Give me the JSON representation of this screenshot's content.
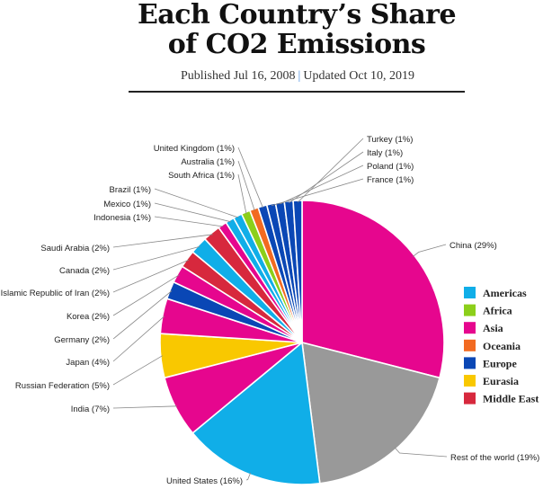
{
  "header": {
    "title_line1": "Each Country’s Share",
    "title_line2": "of CO2 Emissions",
    "published": "Published Jul 16, 2008",
    "separator": "|",
    "updated": "Updated Oct 10, 2019"
  },
  "colors": {
    "Americas": "#10aee8",
    "Africa": "#8ccf1a",
    "Asia": "#e6068e",
    "Oceania": "#f26a21",
    "Europe": "#0a47b5",
    "Eurasia": "#f9c800",
    "Middle East": "#d7283d",
    "Rest": "#999999"
  },
  "chart_data": {
    "type": "pie",
    "start_angle_deg": 0,
    "direction": "clockwise",
    "slices": [
      {
        "label": "China (29%)",
        "value": 29,
        "region": "Asia"
      },
      {
        "label": "Rest of the world (19%)",
        "value": 19,
        "region": "Rest"
      },
      {
        "label": "United States (16%)",
        "value": 16,
        "region": "Americas"
      },
      {
        "label": "India (7%)",
        "value": 7,
        "region": "Asia"
      },
      {
        "label": "Russian Federation (5%)",
        "value": 5,
        "region": "Eurasia"
      },
      {
        "label": "Japan (4%)",
        "value": 4,
        "region": "Asia"
      },
      {
        "label": "Germany (2%)",
        "value": 2,
        "region": "Europe"
      },
      {
        "label": "Korea (2%)",
        "value": 2,
        "region": "Asia"
      },
      {
        "label": "Islamic Republic of Iran (2%)",
        "value": 2,
        "region": "Middle East"
      },
      {
        "label": "Canada (2%)",
        "value": 2,
        "region": "Americas"
      },
      {
        "label": "Saudi Arabia (2%)",
        "value": 2,
        "region": "Middle East"
      },
      {
        "label": "Indonesia (1%)",
        "value": 1,
        "region": "Asia"
      },
      {
        "label": "Mexico (1%)",
        "value": 1,
        "region": "Americas"
      },
      {
        "label": "Brazil (1%)",
        "value": 1,
        "region": "Americas"
      },
      {
        "label": "South Africa (1%)",
        "value": 1,
        "region": "Africa"
      },
      {
        "label": "Australia (1%)",
        "value": 1,
        "region": "Oceania"
      },
      {
        "label": "United Kingdom (1%)",
        "value": 1,
        "region": "Europe"
      },
      {
        "label": "France (1%)",
        "value": 1,
        "region": "Europe"
      },
      {
        "label": "Poland (1%)",
        "value": 1,
        "region": "Europe"
      },
      {
        "label": "Italy (1%)",
        "value": 1,
        "region": "Europe"
      },
      {
        "label": "Turkey (1%)",
        "value": 1,
        "region": "Europe"
      }
    ],
    "legend": {
      "placement": "right",
      "entries": [
        "Americas",
        "Africa",
        "Asia",
        "Oceania",
        "Europe",
        "Eurasia",
        "Middle East"
      ]
    }
  }
}
